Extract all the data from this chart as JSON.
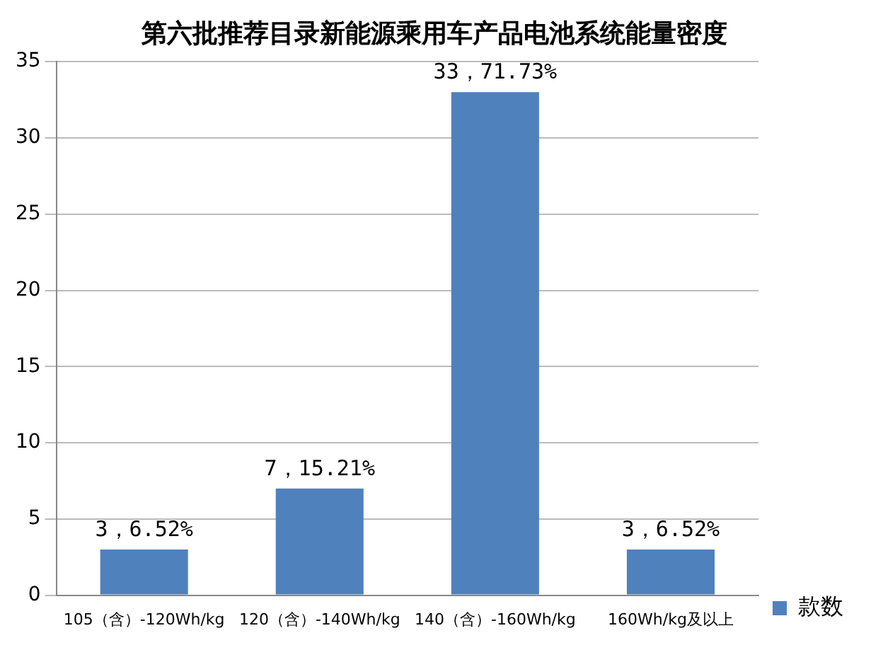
{
  "chart_data": {
    "type": "bar",
    "title": "第六批推荐目录新能源乘用车产品电池系统能量密度",
    "categories": [
      "105（含）-120Wh/kg",
      "120（含）-140Wh/kg",
      "140（含）-160Wh/kg",
      "160Wh/kg及以上"
    ],
    "series": [
      {
        "name": "款数",
        "color": "#4f81bd",
        "values": [
          3,
          7,
          33,
          3
        ]
      }
    ],
    "value_labels": [
      "3，6.52%",
      "7，15.21%",
      "33，71.73%",
      "3，6.52%"
    ],
    "ylim": [
      0,
      35
    ],
    "yticks": [
      0,
      5,
      10,
      15,
      20,
      25,
      30,
      35
    ],
    "grid": "y",
    "legend": "right"
  }
}
